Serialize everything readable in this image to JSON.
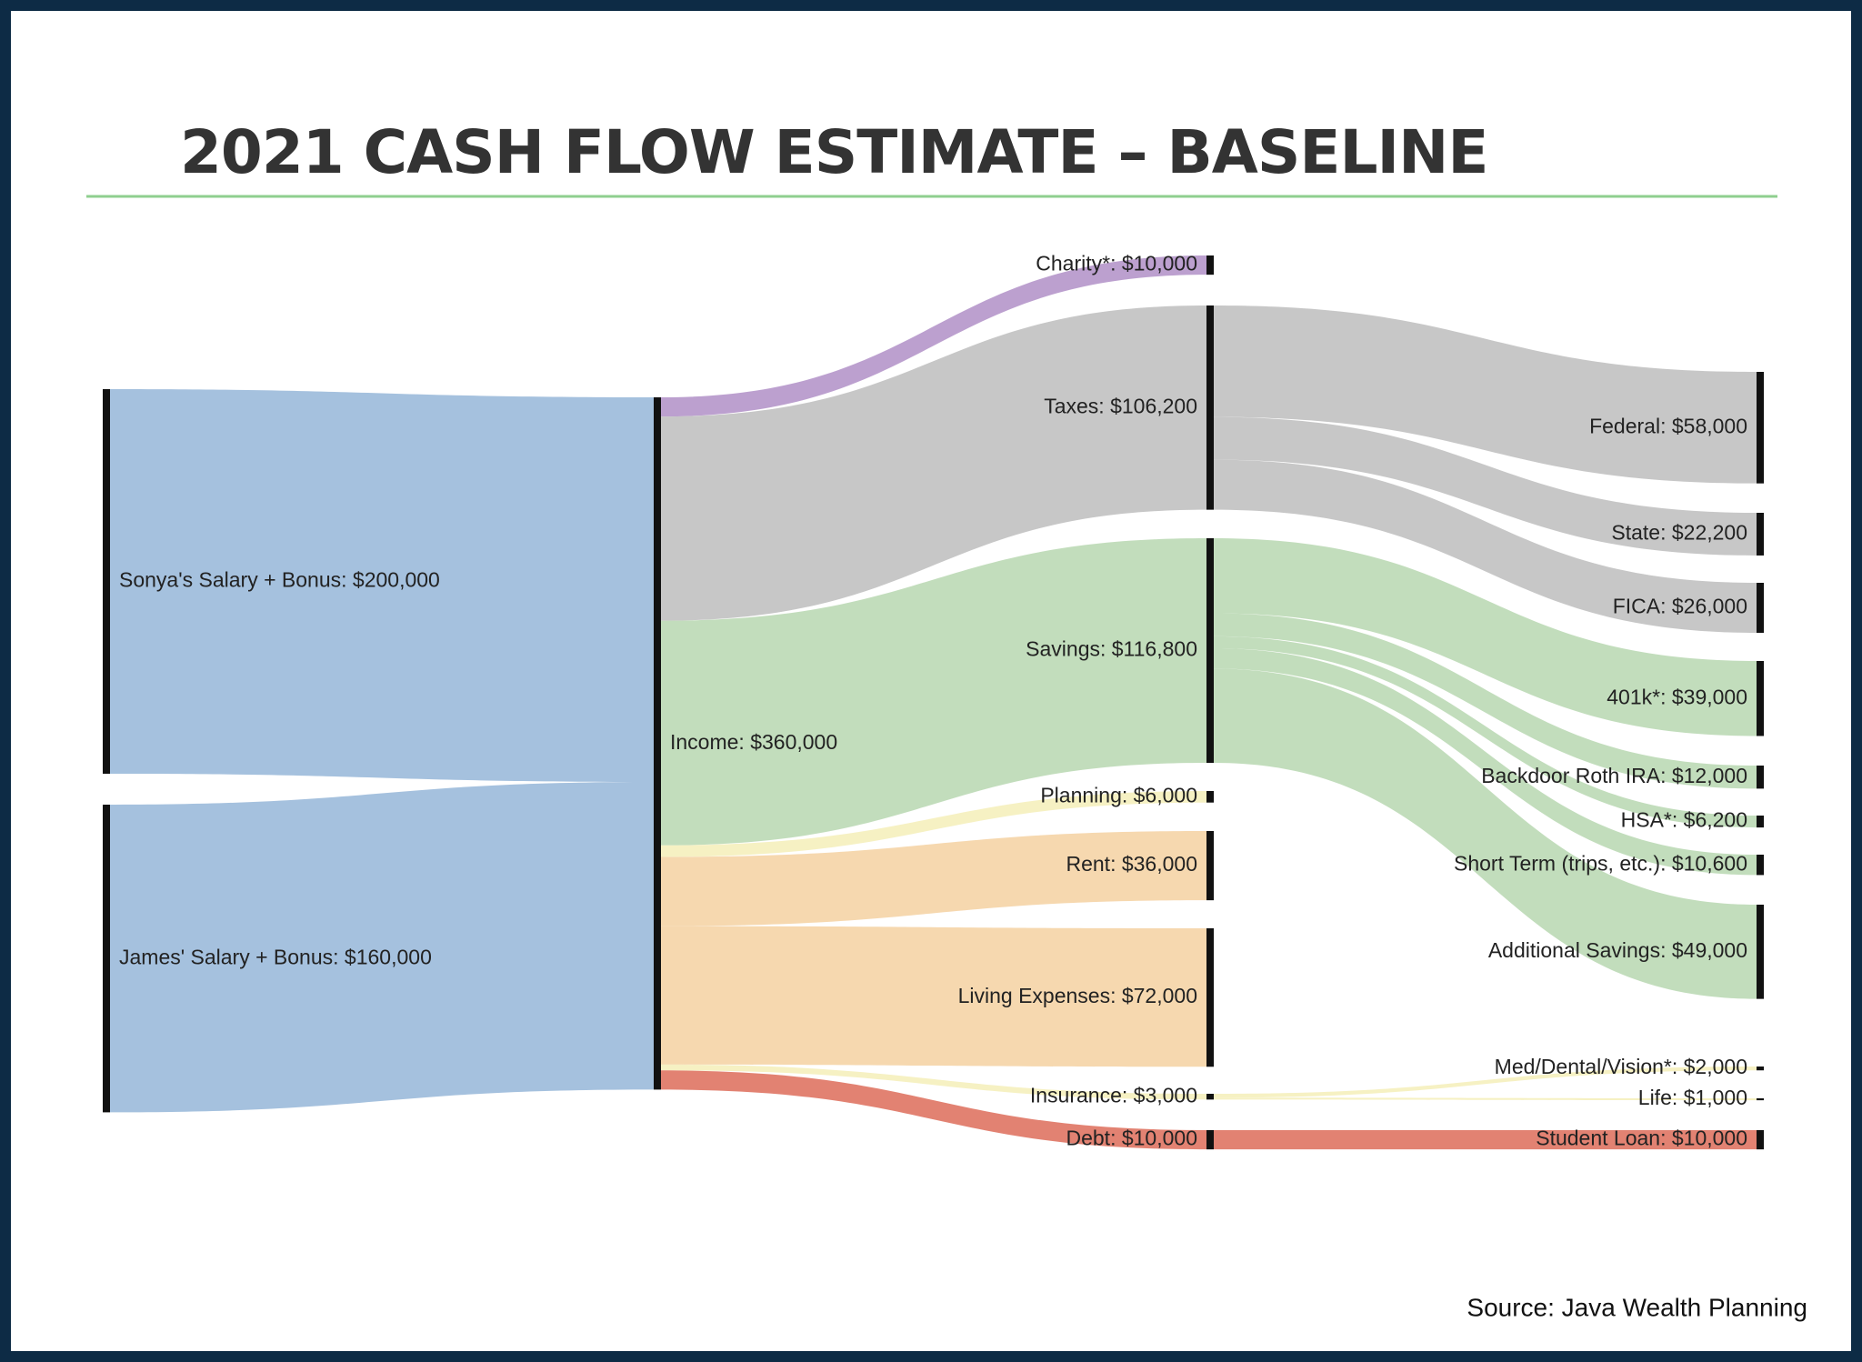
{
  "chart_data": {
    "type": "sankey",
    "title": "2021 CASH FLOW ESTIMATE – BASELINE",
    "source": "Source: Java Wealth Planning",
    "node_color": "#111111",
    "nodes": [
      {
        "label": "Sonya's Salary + Bonus: $200,000",
        "value": 200000
      },
      {
        "label": "James' Salary + Bonus: $160,000",
        "value": 160000
      },
      {
        "label": "Income: $360,000",
        "value": 360000
      },
      {
        "label": "Charity*: $10,000",
        "value": 10000
      },
      {
        "label": "Taxes: $106,200",
        "value": 106200
      },
      {
        "label": "Savings: $116,800",
        "value": 116800
      },
      {
        "label": "Planning: $6,000",
        "value": 6000
      },
      {
        "label": "Rent: $36,000",
        "value": 36000
      },
      {
        "label": "Living Expenses: $72,000",
        "value": 72000
      },
      {
        "label": "Insurance: $3,000",
        "value": 3000
      },
      {
        "label": "Debt: $10,000",
        "value": 10000
      },
      {
        "label": "Federal: $58,000",
        "value": 58000
      },
      {
        "label": "State: $22,200",
        "value": 22200
      },
      {
        "label": "FICA: $26,000",
        "value": 26000
      },
      {
        "label": "401k*: $39,000",
        "value": 39000
      },
      {
        "label": "Backdoor Roth IRA: $12,000",
        "value": 12000
      },
      {
        "label": "HSA*: $6,200",
        "value": 6200
      },
      {
        "label": "Short Term (trips, etc.): $10,600",
        "value": 10600
      },
      {
        "label": "Additional Savings: $49,000",
        "value": 49000
      },
      {
        "label": "Med/Dental/Vision*: $2,000",
        "value": 2000
      },
      {
        "label": "Life: $1,000",
        "value": 1000
      },
      {
        "label": "Student Loan: $10,000",
        "value": 10000
      }
    ],
    "links": [
      {
        "source": 0,
        "target": 2,
        "value": 200000,
        "color": "#a0bedc"
      },
      {
        "source": 1,
        "target": 2,
        "value": 160000,
        "color": "#a0bedc"
      },
      {
        "source": 2,
        "target": 3,
        "value": 10000,
        "color": "#b89bcc"
      },
      {
        "source": 2,
        "target": 4,
        "value": 106200,
        "color": "#c4c4c4"
      },
      {
        "source": 2,
        "target": 5,
        "value": 116800,
        "color": "#bfdbb8"
      },
      {
        "source": 2,
        "target": 6,
        "value": 6000,
        "color": "#f5f0c0"
      },
      {
        "source": 2,
        "target": 7,
        "value": 36000,
        "color": "#f6d6ab"
      },
      {
        "source": 2,
        "target": 8,
        "value": 72000,
        "color": "#f6d6ab"
      },
      {
        "source": 2,
        "target": 9,
        "value": 3000,
        "color": "#f5f0c0"
      },
      {
        "source": 2,
        "target": 10,
        "value": 10000,
        "color": "#e07b6a"
      },
      {
        "source": 4,
        "target": 11,
        "value": 58000,
        "color": "#c4c4c4"
      },
      {
        "source": 4,
        "target": 12,
        "value": 22200,
        "color": "#c4c4c4"
      },
      {
        "source": 4,
        "target": 13,
        "value": 26000,
        "color": "#c4c4c4"
      },
      {
        "source": 5,
        "target": 14,
        "value": 39000,
        "color": "#bfdbb8"
      },
      {
        "source": 5,
        "target": 15,
        "value": 12000,
        "color": "#bfdbb8"
      },
      {
        "source": 5,
        "target": 16,
        "value": 6200,
        "color": "#bfdbb8"
      },
      {
        "source": 5,
        "target": 17,
        "value": 10600,
        "color": "#bfdbb8"
      },
      {
        "source": 5,
        "target": 18,
        "value": 49000,
        "color": "#bfdbb8"
      },
      {
        "source": 9,
        "target": 19,
        "value": 2000,
        "color": "#f5f0c0"
      },
      {
        "source": 9,
        "target": 20,
        "value": 1000,
        "color": "#f5f0c0"
      },
      {
        "source": 10,
        "target": 21,
        "value": 10000,
        "color": "#e07b6a"
      }
    ]
  }
}
